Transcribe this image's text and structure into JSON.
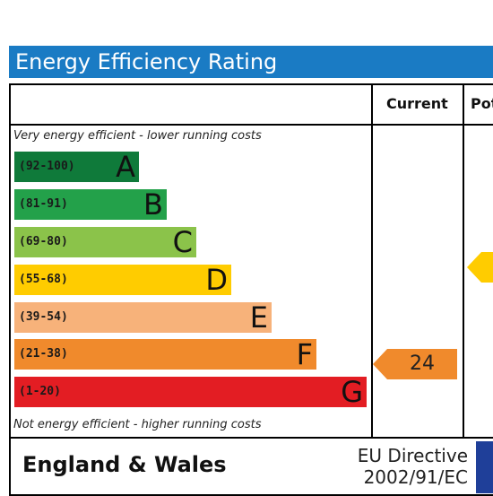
{
  "title": "Energy Efficiency Rating",
  "columns": {
    "current": "Current",
    "potential": "Pot"
  },
  "captions": {
    "top": "Very energy efficient - lower running costs",
    "bottom": "Not energy efficient - higher running costs"
  },
  "bands": [
    {
      "range": "(92-100)",
      "letter": "A",
      "color": "#0f7a3a"
    },
    {
      "range": "(81-91)",
      "letter": "B",
      "color": "#23a14a"
    },
    {
      "range": "(69-80)",
      "letter": "C",
      "color": "#8bc34a"
    },
    {
      "range": "(55-68)",
      "letter": "D",
      "color": "#ffcc00"
    },
    {
      "range": "(39-54)",
      "letter": "E",
      "color": "#f7b27a"
    },
    {
      "range": "(21-38)",
      "letter": "F",
      "color": "#f08a2c"
    },
    {
      "range": "(1-20)",
      "letter": "G",
      "color": "#e31d23"
    }
  ],
  "current_rating": {
    "value": "24",
    "color": "#f08a2c"
  },
  "potential_rating": {
    "color": "#ffcc00"
  },
  "footer": {
    "region": "England & Wales",
    "directive_line1": "EU Directive",
    "directive_line2": "2002/91/EC",
    "flag_color": "#1f3f99"
  }
}
